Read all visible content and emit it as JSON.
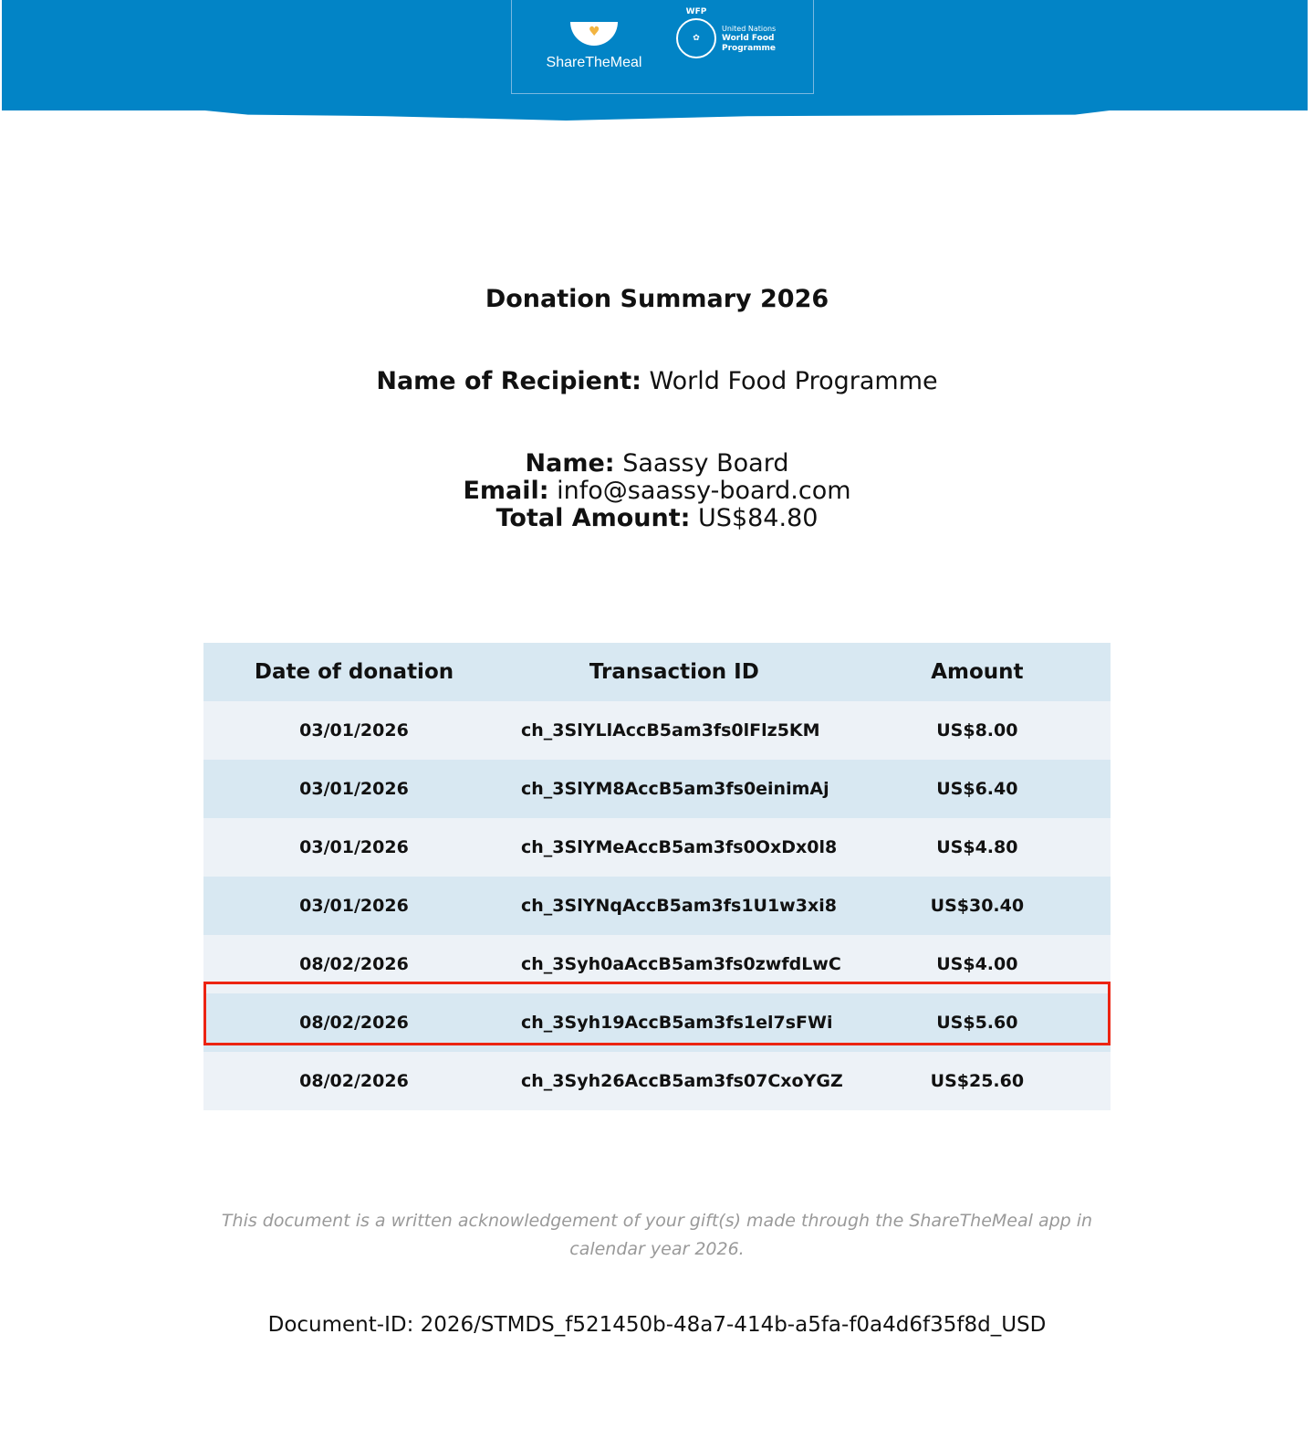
{
  "header": {
    "brand": "ShareTheMeal",
    "partner_abbr": "WFP",
    "partner_line1": "United Nations",
    "partner_line2": "World Food",
    "partner_line3": "Programme",
    "color": "#0284c6"
  },
  "title": "Donation Summary 2026",
  "recipient": {
    "label": "Name of Recipient:",
    "value": "World Food Programme"
  },
  "donor": {
    "name_label": "Name:",
    "name": "Saassy Board",
    "email_label": "Email:",
    "email": "info@saassy-board.com",
    "total_label": "Total Amount:",
    "total": "US$84.80"
  },
  "table": {
    "headers": [
      "Date of donation",
      "Transaction ID",
      "Amount"
    ],
    "rows": [
      {
        "date": "03/01/2026",
        "id": "ch_3SlYLlAccB5am3fs0lFlz5KM",
        "amount": "US$8.00"
      },
      {
        "date": "03/01/2026",
        "id": "ch_3SlYM8AccB5am3fs0einimAj",
        "amount": "US$6.40"
      },
      {
        "date": "03/01/2026",
        "id": "ch_3SlYMeAccB5am3fs0OxDx0l8",
        "amount": "US$4.80"
      },
      {
        "date": "03/01/2026",
        "id": "ch_3SlYNqAccB5am3fs1U1w3xi8",
        "amount": "US$30.40"
      },
      {
        "date": "08/02/2026",
        "id": "ch_3Syh0aAccB5am3fs0zwfdLwC",
        "amount": "US$4.00"
      },
      {
        "date": "08/02/2026",
        "id": "ch_3Syh19AccB5am3fs1el7sFWi",
        "amount": "US$5.60",
        "highlighted": true
      },
      {
        "date": "08/02/2026",
        "id": "ch_3Syh26AccB5am3fs07CxoYGZ",
        "amount": "US$25.60"
      }
    ]
  },
  "note": "This document is a written acknowledgement of your gift(s) made through the ShareTheMeal app in calendar year 2026.",
  "document_id": "Document-ID: 2026/STMDS_f521450b-48a7-414b-a5fa-f0a4d6f35f8d_USD"
}
